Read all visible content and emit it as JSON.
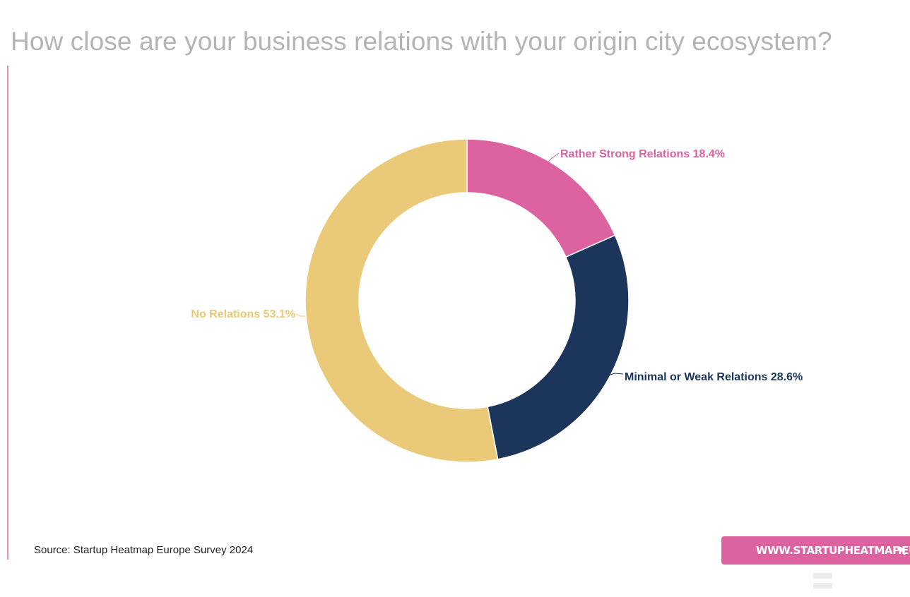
{
  "title": "How close are your business relations with your origin city ecosystem?",
  "source": "Source: Startup Heatmap Europe Survey 2024",
  "website_button": "WWW.STARTUPHEATMAP.EU",
  "colors": {
    "rather_strong": "#dd63a0",
    "minimal_weak": "#1c355a",
    "none": "#eaca78",
    "title": "#b4b4b4",
    "accent": "#e58fb8"
  },
  "chart_data": {
    "type": "pie",
    "donut": true,
    "title": "How close are your business relations with your origin city ecosystem?",
    "slices": [
      {
        "label": "Rather Strong Relations",
        "value": 18.4,
        "display": "Rather Strong Relations 18.4%",
        "color": "#dd63a0"
      },
      {
        "label": "Minimal or Weak Relations",
        "value": 28.6,
        "display": "Minimal or Weak Relations 28.6%",
        "color": "#1c355a"
      },
      {
        "label": "No Relations",
        "value": 53.1,
        "display": "No Relations 53.1%",
        "color": "#eaca78"
      }
    ]
  }
}
